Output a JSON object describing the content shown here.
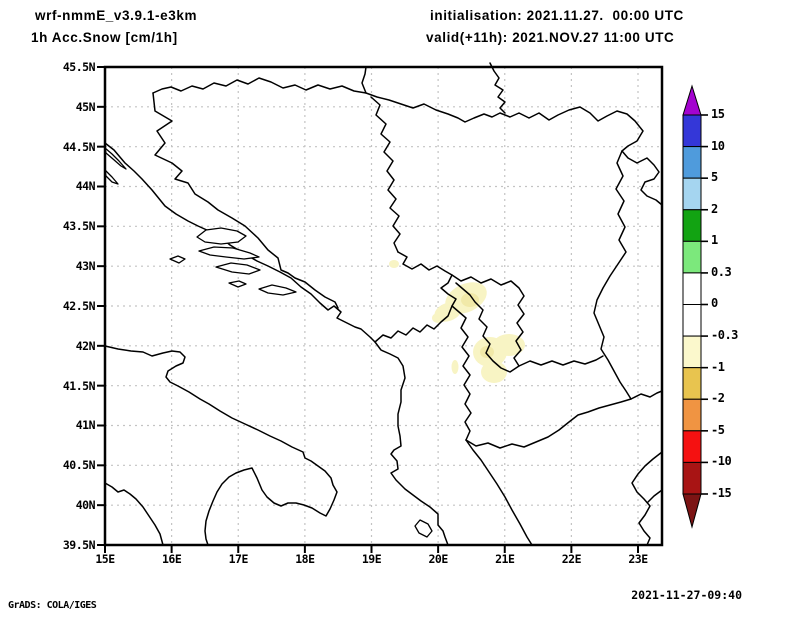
{
  "header": {
    "model_title": "wrf-nmmE_v3.9.1-e3km",
    "variable_title": "1h Acc.Snow [cm/1h]",
    "init_label": "initialisation: 2021.11.27.  00:00 UTC",
    "valid_label": "valid(+11h): 2021.NOV.27 11:00 UTC"
  },
  "axes": {
    "lat_ticks": [
      "45.5N",
      "45N",
      "44.5N",
      "44N",
      "43.5N",
      "43N",
      "42.5N",
      "42N",
      "41.5N",
      "41N",
      "40.5N",
      "40N",
      "39.5N"
    ],
    "lon_ticks": [
      "15E",
      "16E",
      "17E",
      "18E",
      "19E",
      "20E",
      "21E",
      "22E",
      "23E"
    ]
  },
  "colorbar": {
    "units": "cm/1h",
    "levels": [
      "15",
      "10",
      "5",
      "2",
      "1",
      "0.3",
      "0",
      "-0.3",
      "-1",
      "-2",
      "-5",
      "-10",
      "-15"
    ],
    "segment_colors": [
      "#3437d8",
      "#4f9bdc",
      "#a5d5f0",
      "#12a312",
      "#7ce87c",
      "#ffffff",
      "#ffffff",
      "#fbf8cc",
      "#e8c44f",
      "#f09442",
      "#f51111",
      "#a81414"
    ],
    "above_color": "#a303cf",
    "below_color": "#7c1414"
  },
  "map": {
    "extent": {
      "lon_min": 15,
      "lon_max": 23.35,
      "lat_min": 39.5,
      "lat_max": 45.5
    },
    "grid": {
      "lon_interval_deg": 1,
      "lat_interval_deg": 0.5
    },
    "shading_color": "#f8f4c4",
    "shading_inner_color": "#f1e9a8",
    "gridline_color": "#c3c3c3"
  },
  "footer": {
    "attribution": "GrADS: COLA/IGES",
    "timestamp": "2021-11-27-09:40"
  }
}
